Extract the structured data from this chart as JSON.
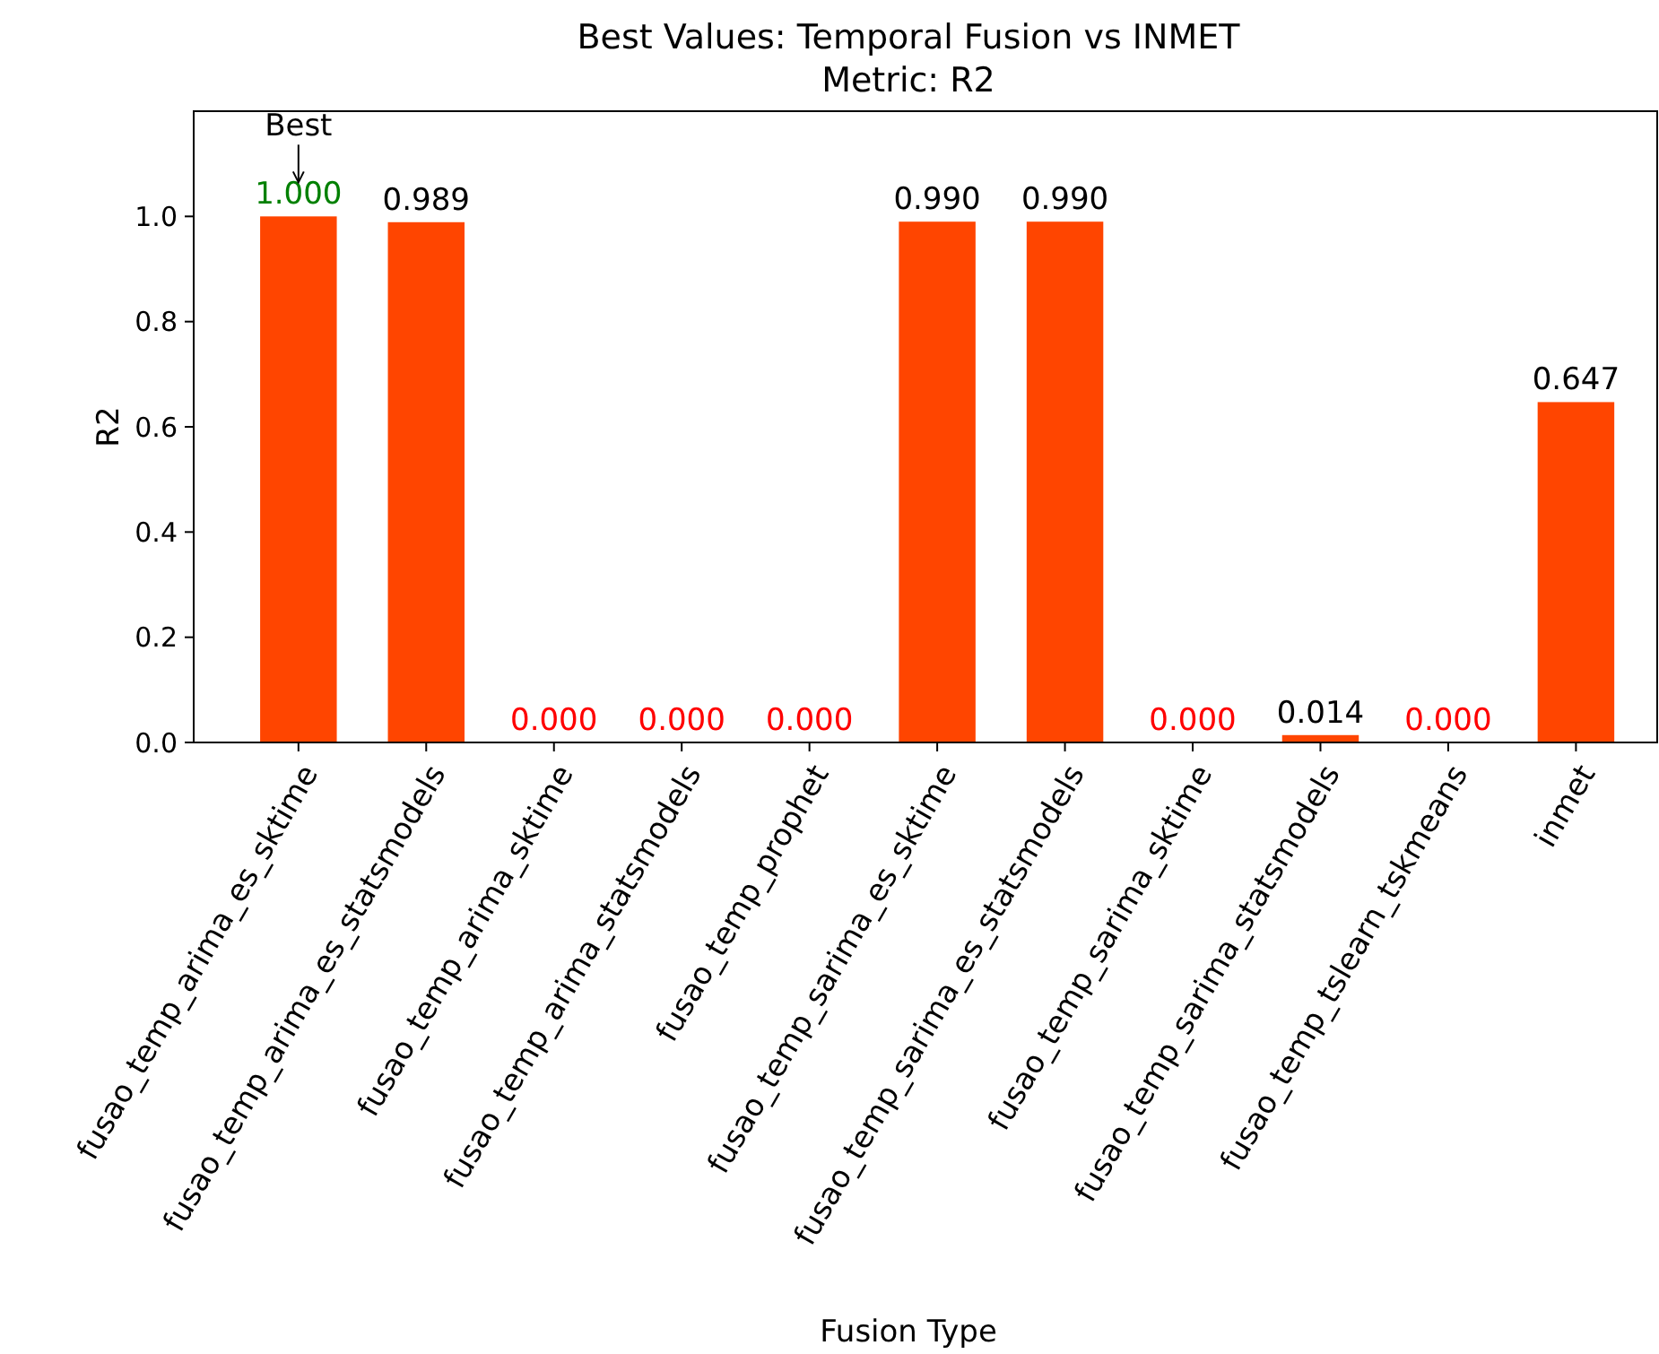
{
  "chart_data": {
    "type": "bar",
    "title": "Best Values: Temporal Fusion vs INMET",
    "subtitle": "Metric: R2",
    "xlabel": "Fusion Type",
    "ylabel": "R2",
    "categories": [
      "fusao_temp_arima_es_sktime",
      "fusao_temp_arima_es_statsmodels",
      "fusao_temp_arima_sktime",
      "fusao_temp_arima_statsmodels",
      "fusao_temp_prophet",
      "fusao_temp_sarima_es_sktime",
      "fusao_temp_sarima_es_statsmodels",
      "fusao_temp_sarima_sktime",
      "fusao_temp_sarima_statsmodels",
      "fusao_temp_tslearn_tskmeans",
      "inmet"
    ],
    "values": [
      1.0,
      0.989,
      0,
      0,
      0,
      0.99,
      0.99,
      0,
      0.014,
      0,
      0.647
    ],
    "value_labels": [
      "1.000",
      "0.989",
      "0.000",
      "0.000",
      "0.000",
      "0.990",
      "0.990",
      "0.000",
      "0.014",
      "0.000",
      "0.647"
    ],
    "color": "#ff4500",
    "ylim": [
      0,
      1.2
    ],
    "yticks": [
      {
        "value": 0,
        "label": "0.0"
      },
      {
        "value": 0.2,
        "label": "0.2"
      },
      {
        "value": 0.4,
        "label": "0.4"
      },
      {
        "value": 0.6,
        "label": "0.6"
      },
      {
        "value": 0.8,
        "label": "0.8"
      },
      {
        "value": 1.0,
        "label": "1.0"
      }
    ],
    "grid": false,
    "annotations": [
      {
        "text": "Best",
        "x": "fusao_temp_arima_es_sktime",
        "y": 1.0
      }
    ]
  }
}
